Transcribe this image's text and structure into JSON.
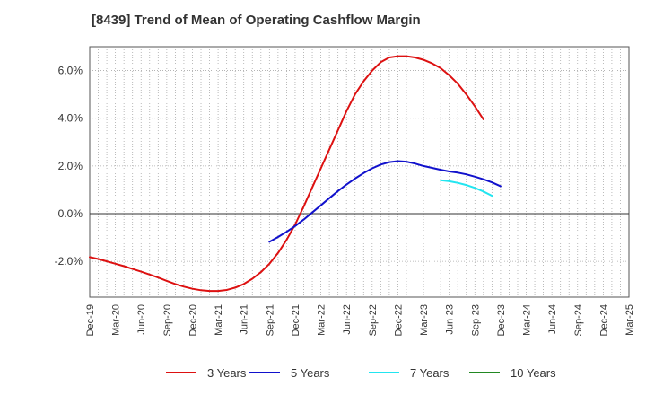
{
  "chart_data": {
    "type": "line",
    "title": "[8439]  Trend of Mean of Operating Cashflow Margin",
    "xlabel": "",
    "ylabel": "",
    "x_ticks": [
      "Dec-19",
      "Mar-20",
      "Jun-20",
      "Sep-20",
      "Dec-20",
      "Mar-21",
      "Jun-21",
      "Sep-21",
      "Dec-21",
      "Mar-22",
      "Jun-22",
      "Sep-22",
      "Dec-22",
      "Mar-23",
      "Jun-23",
      "Sep-23",
      "Dec-23",
      "Mar-24",
      "Jun-24",
      "Sep-24",
      "Dec-24",
      "Mar-25"
    ],
    "y_ticks": [
      "-2.0%",
      "0.0%",
      "2.0%",
      "4.0%",
      "6.0%"
    ],
    "y_tick_values": [
      -2,
      0,
      2,
      4,
      6
    ],
    "ylim": [
      -3.5,
      7.0
    ],
    "grid": true,
    "legend_position": "bottom",
    "series": [
      {
        "name": "3 Years",
        "color": "#dd1111",
        "start_index": 0,
        "values": [
          -1.82,
          -1.9,
          -2.0,
          -2.1,
          -2.2,
          -2.32,
          -2.43,
          -2.55,
          -2.68,
          -2.82,
          -2.95,
          -3.06,
          -3.15,
          -3.21,
          -3.24,
          -3.24,
          -3.2,
          -3.1,
          -2.95,
          -2.73,
          -2.45,
          -2.1,
          -1.65,
          -1.1,
          -0.45,
          0.3,
          1.1,
          1.9,
          2.7,
          3.5,
          4.3,
          5.0,
          5.55,
          6.0,
          6.35,
          6.55,
          6.6,
          6.6,
          6.55,
          6.45,
          6.3,
          6.1,
          5.8,
          5.45,
          5.0,
          4.5,
          3.95
        ]
      },
      {
        "name": "5 Years",
        "color": "#1111cc",
        "start_index": 21,
        "values": [
          -1.18,
          -0.98,
          -0.76,
          -0.52,
          -0.25,
          0.05,
          0.35,
          0.65,
          0.95,
          1.22,
          1.47,
          1.7,
          1.9,
          2.06,
          2.16,
          2.2,
          2.18,
          2.1,
          2.0,
          1.92,
          1.84,
          1.77,
          1.72,
          1.65,
          1.55,
          1.44,
          1.31,
          1.15
        ]
      },
      {
        "name": "7 Years",
        "color": "#22e5f0",
        "start_index": 41,
        "values": [
          1.4,
          1.36,
          1.29,
          1.2,
          1.08,
          0.93,
          0.75
        ]
      },
      {
        "name": "10 Years",
        "color": "#228822",
        "start_index": 0,
        "values": []
      }
    ]
  }
}
